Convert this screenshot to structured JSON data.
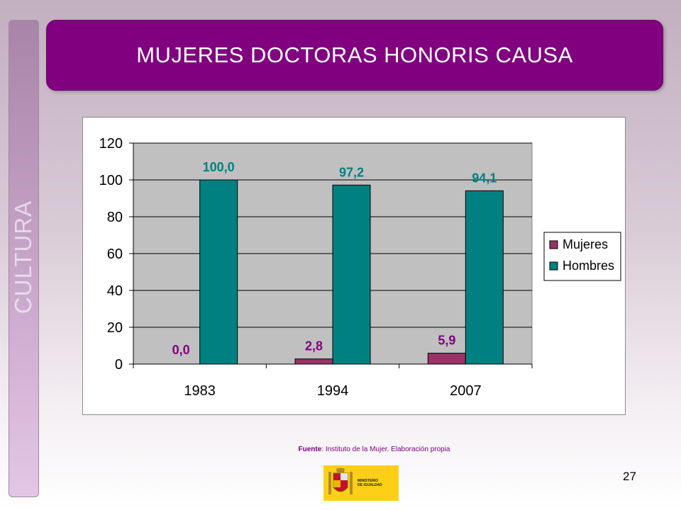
{
  "sidebar": {
    "label": "CULTURA"
  },
  "header": {
    "title": "MUJERES DOCTORAS HONORIS CAUSA"
  },
  "footer": {
    "source_label": "Fuente",
    "source_text": ": Instituto de la Mujer. Elaboración propia",
    "page_number": "27",
    "logo_text_1": "MINISTERIO",
    "logo_text_2": "DE IGUALDAD"
  },
  "chart_data": {
    "type": "bar",
    "categories": [
      "1983",
      "1994",
      "2007"
    ],
    "series": [
      {
        "name": "Mujeres",
        "values": [
          0.0,
          2.8,
          5.9
        ],
        "labels": [
          "0,0",
          "2,8",
          "5,9"
        ],
        "color": "#993366"
      },
      {
        "name": "Hombres",
        "values": [
          100.0,
          97.2,
          94.1
        ],
        "labels": [
          "100,0",
          "97,2",
          "94,1"
        ],
        "color": "#008080"
      }
    ],
    "ylim": [
      0,
      120
    ],
    "yticks": [
      0,
      20,
      40,
      60,
      80,
      100,
      120
    ],
    "grid": true,
    "plot_background": "#c0c0c0",
    "legend_position": "right"
  }
}
